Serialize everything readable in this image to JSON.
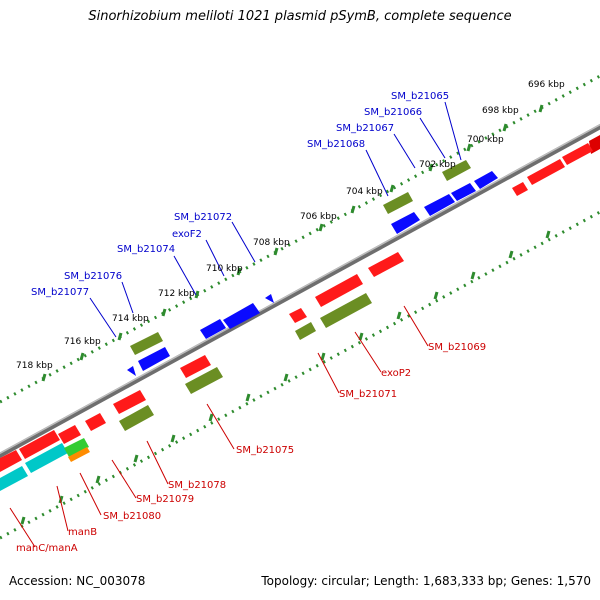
{
  "title": "Sinorhizobium meliloti 1021 plasmid pSymB, complete sequence",
  "footer": {
    "accession": "Accession: NC_003078",
    "summary": "Topology: circular; Length: 1,683,333 bp; Genes: 1,570"
  },
  "colors": {
    "backbone": "#808080",
    "scale": "#2e8b2e",
    "label_forward": "#0000cc",
    "label_reverse": "#cc0000",
    "gene_red": "#ff0000",
    "gene_blue": "#0000ff",
    "gene_olive": "#6b8e23",
    "gene_cyan": "#00c0c0",
    "gene_green": "#33cc33",
    "gene_orange": "#ff8c00"
  },
  "scale_labels": [
    "696 kbp",
    "698 kbp",
    "700 kbp",
    "702 kbp",
    "704 kbp",
    "706 kbp",
    "708 kbp",
    "710 kbp",
    "712 kbp",
    "714 kbp",
    "716 kbp",
    "718 kbp"
  ],
  "gene_labels": {
    "forward": [
      "SM_b21065",
      "SM_b21066",
      "SM_b21067",
      "SM_b21068",
      "SM_b21072",
      "exoF2",
      "SM_b21074",
      "SM_b21076",
      "SM_b21077"
    ],
    "reverse": [
      "SM_b21069",
      "exoP2",
      "SM_b21071",
      "SM_b21075",
      "SM_b21078",
      "SM_b21079",
      "SM_b21080",
      "manB",
      "manC/manA"
    ]
  }
}
